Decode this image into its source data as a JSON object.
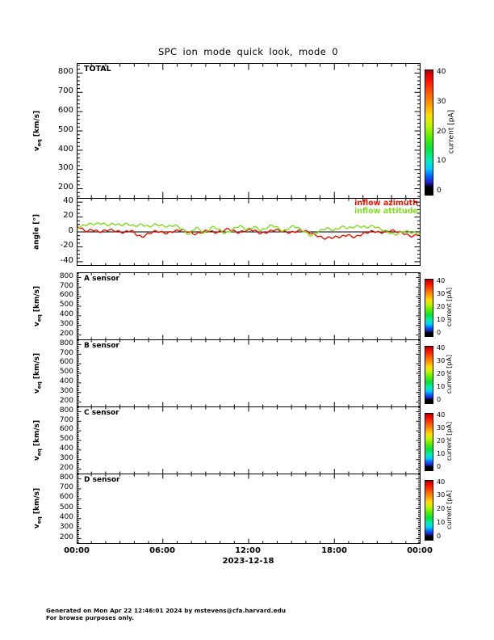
{
  "title": "SPC ion mode quick look, mode 0",
  "date_label": "2023-12-18",
  "footer": {
    "line1": "Generated on Mon Apr 22 12:46:01 2024 by mstevens@cfa.harvard.edu",
    "line2": "For browse purposes only."
  },
  "chart_data": {
    "type": "line",
    "title": "SPC ion mode quick look, mode 0",
    "x_axis": {
      "tick_labels": [
        "00:00",
        "06:00",
        "12:00",
        "18:00",
        "00:00"
      ],
      "date": "2023-12-18",
      "range_hours": [
        0,
        24
      ],
      "major_tick_hours": 6,
      "minor_tick_hours": 1
    },
    "colorbar": {
      "label": "current [pA]",
      "tick_values": [
        40,
        30,
        20,
        10,
        0
      ],
      "lim": [
        0,
        40
      ],
      "gradient": [
        {
          "pos": 0,
          "color": "#aa0000"
        },
        {
          "pos": 3,
          "color": "#dd0000"
        },
        {
          "pos": 8,
          "color": "#ff0f00"
        },
        {
          "pos": 18,
          "color": "#ff5a00"
        },
        {
          "pos": 27,
          "color": "#ff9900"
        },
        {
          "pos": 36,
          "color": "#ffdd00"
        },
        {
          "pos": 44,
          "color": "#c3f500"
        },
        {
          "pos": 54,
          "color": "#55ee00"
        },
        {
          "pos": 63,
          "color": "#00e63c"
        },
        {
          "pos": 72,
          "color": "#00eeb4"
        },
        {
          "pos": 79,
          "color": "#00ccff"
        },
        {
          "pos": 85,
          "color": "#0066ff"
        },
        {
          "pos": 90,
          "color": "#2222cc"
        },
        {
          "pos": 94,
          "color": "#000000"
        },
        {
          "pos": 100,
          "color": "#000000"
        }
      ]
    },
    "panels": [
      {
        "id": "total",
        "label": "TOTAL",
        "ylabel": "v_eq [km/s]",
        "ylabel_parts": {
          "base": "v",
          "sub": "eq",
          "unit": "[km/s]"
        },
        "ylim": [
          150,
          850
        ],
        "yticks": [
          800,
          700,
          600,
          500,
          400,
          300,
          200
        ],
        "colorbar": true,
        "series": []
      },
      {
        "id": "angle",
        "label": "",
        "ylabel": "angle [°]",
        "ylim": [
          -45,
          45
        ],
        "yticks": [
          40,
          20,
          0,
          -20,
          -40
        ],
        "colorbar": false,
        "ref_line_y": 0,
        "legend": [
          {
            "label": "inflow azimuth",
            "color": "#ee1100"
          },
          {
            "label": "inflow attitude",
            "color": "#7fdd1c"
          }
        ],
        "series": [
          {
            "name": "inflow azimuth",
            "color": "#ee1100",
            "unit": "deg",
            "y": [
              8,
              5,
              2,
              1,
              3,
              2,
              0,
              1,
              2,
              3,
              2,
              1,
              0,
              -1,
              1,
              2,
              -2,
              -5,
              -7,
              -4,
              -2,
              0,
              1,
              0,
              -1,
              -2,
              0,
              1,
              2,
              3,
              1,
              0,
              -2,
              -3,
              -1,
              0,
              2,
              1,
              -1,
              0,
              1,
              3,
              4,
              2,
              0,
              -1,
              1,
              2,
              3,
              2,
              0,
              -2,
              -1,
              0,
              2,
              3,
              2,
              1,
              0,
              -1,
              0,
              1,
              2,
              1,
              0,
              -2,
              -4,
              -6,
              -8,
              -9,
              -7,
              -8,
              -6,
              -7,
              -5,
              -4,
              -6,
              -7,
              -5,
              -3,
              -1,
              0,
              1,
              0,
              -1,
              0,
              1,
              2,
              1,
              0,
              -1,
              -3,
              -5,
              -6,
              -4,
              -2
            ]
          },
          {
            "name": "inflow attitude",
            "color": "#7fdd1c",
            "unit": "deg",
            "y": [
              5,
              7,
              9,
              10,
              11,
              10,
              12,
              11,
              10,
              9,
              11,
              10,
              9,
              10,
              11,
              9,
              8,
              9,
              10,
              8,
              7,
              9,
              10,
              9,
              8,
              7,
              8,
              9,
              7,
              4,
              0,
              -3,
              2,
              6,
              3,
              -2,
              1,
              5,
              7,
              4,
              1,
              -2,
              0,
              3,
              6,
              8,
              6,
              3,
              5,
              7,
              5,
              2,
              4,
              7,
              9,
              7,
              4,
              1,
              3,
              6,
              8,
              6,
              3,
              0,
              -3,
              -5,
              -2,
              1,
              3,
              5,
              4,
              2,
              4,
              6,
              7,
              5,
              6,
              7,
              8,
              7,
              6,
              7,
              8,
              6,
              4,
              2,
              0,
              -2,
              -4,
              -2,
              0,
              1,
              0,
              -1,
              -2,
              -3
            ]
          }
        ]
      },
      {
        "id": "a_sensor",
        "label": "A sensor",
        "ylabel": "v_eq [km/s]",
        "ylabel_parts": {
          "base": "v",
          "sub": "eq",
          "unit": "[km/s]"
        },
        "ylim": [
          150,
          850
        ],
        "yticks": [
          800,
          700,
          600,
          500,
          400,
          300,
          200
        ],
        "colorbar": true,
        "series": []
      },
      {
        "id": "b_sensor",
        "label": "B sensor",
        "ylabel": "v_eq [km/s]",
        "ylabel_parts": {
          "base": "v",
          "sub": "eq",
          "unit": "[km/s]"
        },
        "ylim": [
          150,
          850
        ],
        "yticks": [
          800,
          700,
          600,
          500,
          400,
          300,
          200
        ],
        "colorbar": true,
        "series": []
      },
      {
        "id": "c_sensor",
        "label": "C sensor",
        "ylabel": "v_eq [km/s]",
        "ylabel_parts": {
          "base": "v",
          "sub": "eq",
          "unit": "[km/s]"
        },
        "ylim": [
          150,
          850
        ],
        "yticks": [
          800,
          700,
          600,
          500,
          400,
          300,
          200
        ],
        "colorbar": true,
        "series": []
      },
      {
        "id": "d_sensor",
        "label": "D sensor",
        "ylabel": "v_eq [km/s]",
        "ylabel_parts": {
          "base": "v",
          "sub": "eq",
          "unit": "[km/s]"
        },
        "ylim": [
          150,
          850
        ],
        "yticks": [
          800,
          700,
          600,
          500,
          400,
          300,
          200
        ],
        "colorbar": true,
        "series": []
      }
    ]
  }
}
